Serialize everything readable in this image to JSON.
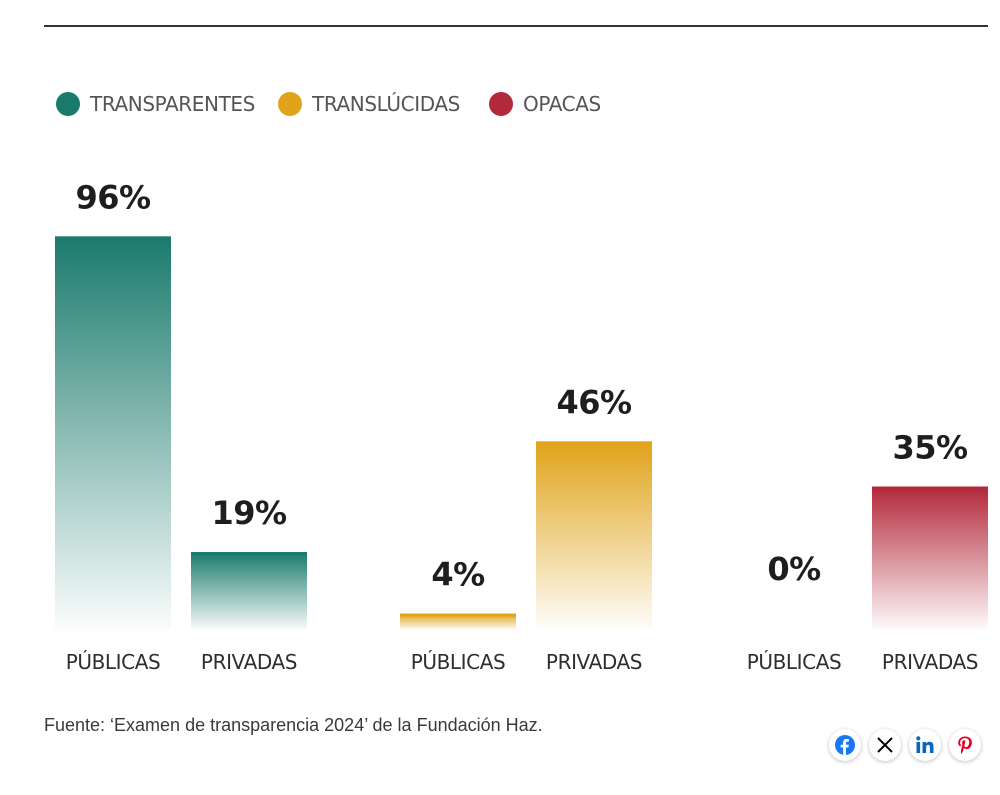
{
  "chart_data": {
    "type": "bar",
    "legend": [
      {
        "name": "TRANSPARENTES",
        "color": "#1a7a6c"
      },
      {
        "name": "TRANSLÚCIDAS",
        "color": "#e0a31a"
      },
      {
        "name": "OPACAS",
        "color": "#b3283a"
      }
    ],
    "legend_position": "top-left",
    "categories": [
      "PÚBLICAS",
      "PRIVADAS"
    ],
    "groups": [
      {
        "name": "TRANSPARENTES",
        "color": "#1a7a6c",
        "bars": [
          {
            "category": "PÚBLICAS",
            "value": 96,
            "label": "96%"
          },
          {
            "category": "PRIVADAS",
            "value": 19,
            "label": "19%"
          }
        ]
      },
      {
        "name": "TRANSLÚCIDAS",
        "color": "#e0a31a",
        "bars": [
          {
            "category": "PÚBLICAS",
            "value": 4,
            "label": "4%"
          },
          {
            "category": "PRIVADAS",
            "value": 46,
            "label": "46%"
          }
        ]
      },
      {
        "name": "OPACAS",
        "color": "#b3283a",
        "bars": [
          {
            "category": "PÚBLICAS",
            "value": 0,
            "label": "0%"
          },
          {
            "category": "PRIVADAS",
            "value": 35,
            "label": "35%"
          }
        ]
      }
    ],
    "ylim": [
      0,
      100
    ],
    "grid": false,
    "title": "",
    "xlabel": "",
    "ylabel": ""
  },
  "source_note": "Fuente: ‘Examen de transparencia 2024’ de la Fundación Haz.",
  "share": {
    "icons": [
      "facebook-icon",
      "x-icon",
      "linkedin-icon",
      "pinterest-icon"
    ],
    "colors": {
      "facebook": "#1877f2",
      "x": "#000000",
      "linkedin": "#0a66c2",
      "pinterest": "#e60023"
    }
  }
}
